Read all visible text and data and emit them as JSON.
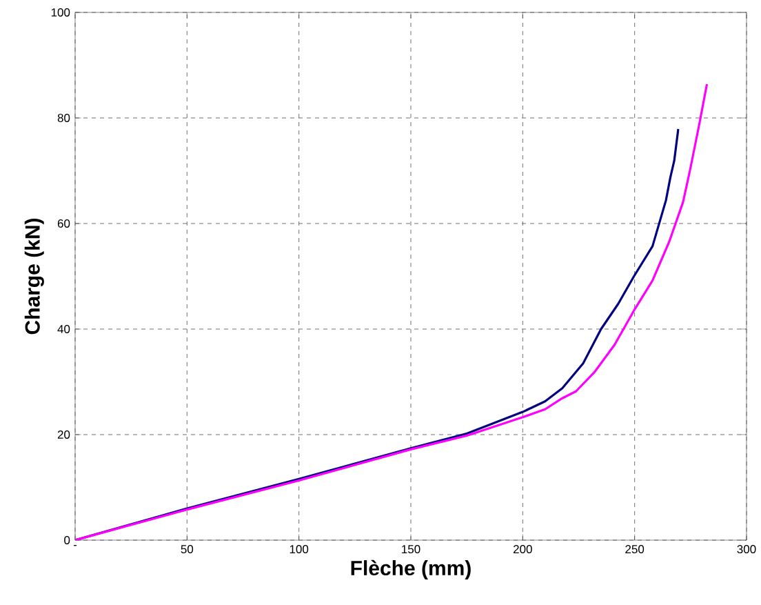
{
  "chart_data": {
    "type": "line",
    "xlabel": "Flèche (mm)",
    "ylabel": "Charge (kN)",
    "xlim": [
      0,
      300
    ],
    "ylim": [
      0,
      100
    ],
    "xticks": [
      {
        "value": 0,
        "label": "-"
      },
      50,
      100,
      150,
      200,
      250,
      300
    ],
    "yticks": [
      0,
      20,
      40,
      60,
      80,
      100
    ],
    "grid": true,
    "line_style": "solid",
    "marker": "none",
    "series": [
      {
        "color": "#000080",
        "x": [
          0,
          50,
          100,
          150,
          175,
          200,
          210,
          217.7,
          227,
          235,
          242.7,
          249.7,
          258,
          264,
          266,
          267.7,
          269.5
        ],
        "values": [
          0,
          6,
          11.6,
          17.4,
          20.2,
          24.3,
          26.3,
          28.8,
          33.5,
          40,
          44.8,
          50,
          55.7,
          64.4,
          68.8,
          71.9,
          77.9
        ]
      },
      {
        "color": "#ff00ff",
        "x": [
          0,
          50,
          100,
          150,
          175,
          200,
          210,
          217.7,
          223.8,
          232,
          241,
          249.7,
          258,
          265.5,
          271.6,
          274.7,
          278.7,
          282.3
        ],
        "values": [
          0,
          5.8,
          11.3,
          17.2,
          19.8,
          23.3,
          24.8,
          26.9,
          28.2,
          31.8,
          37,
          43.5,
          49.2,
          56.6,
          64,
          70,
          78.4,
          86.4
        ]
      }
    ]
  }
}
